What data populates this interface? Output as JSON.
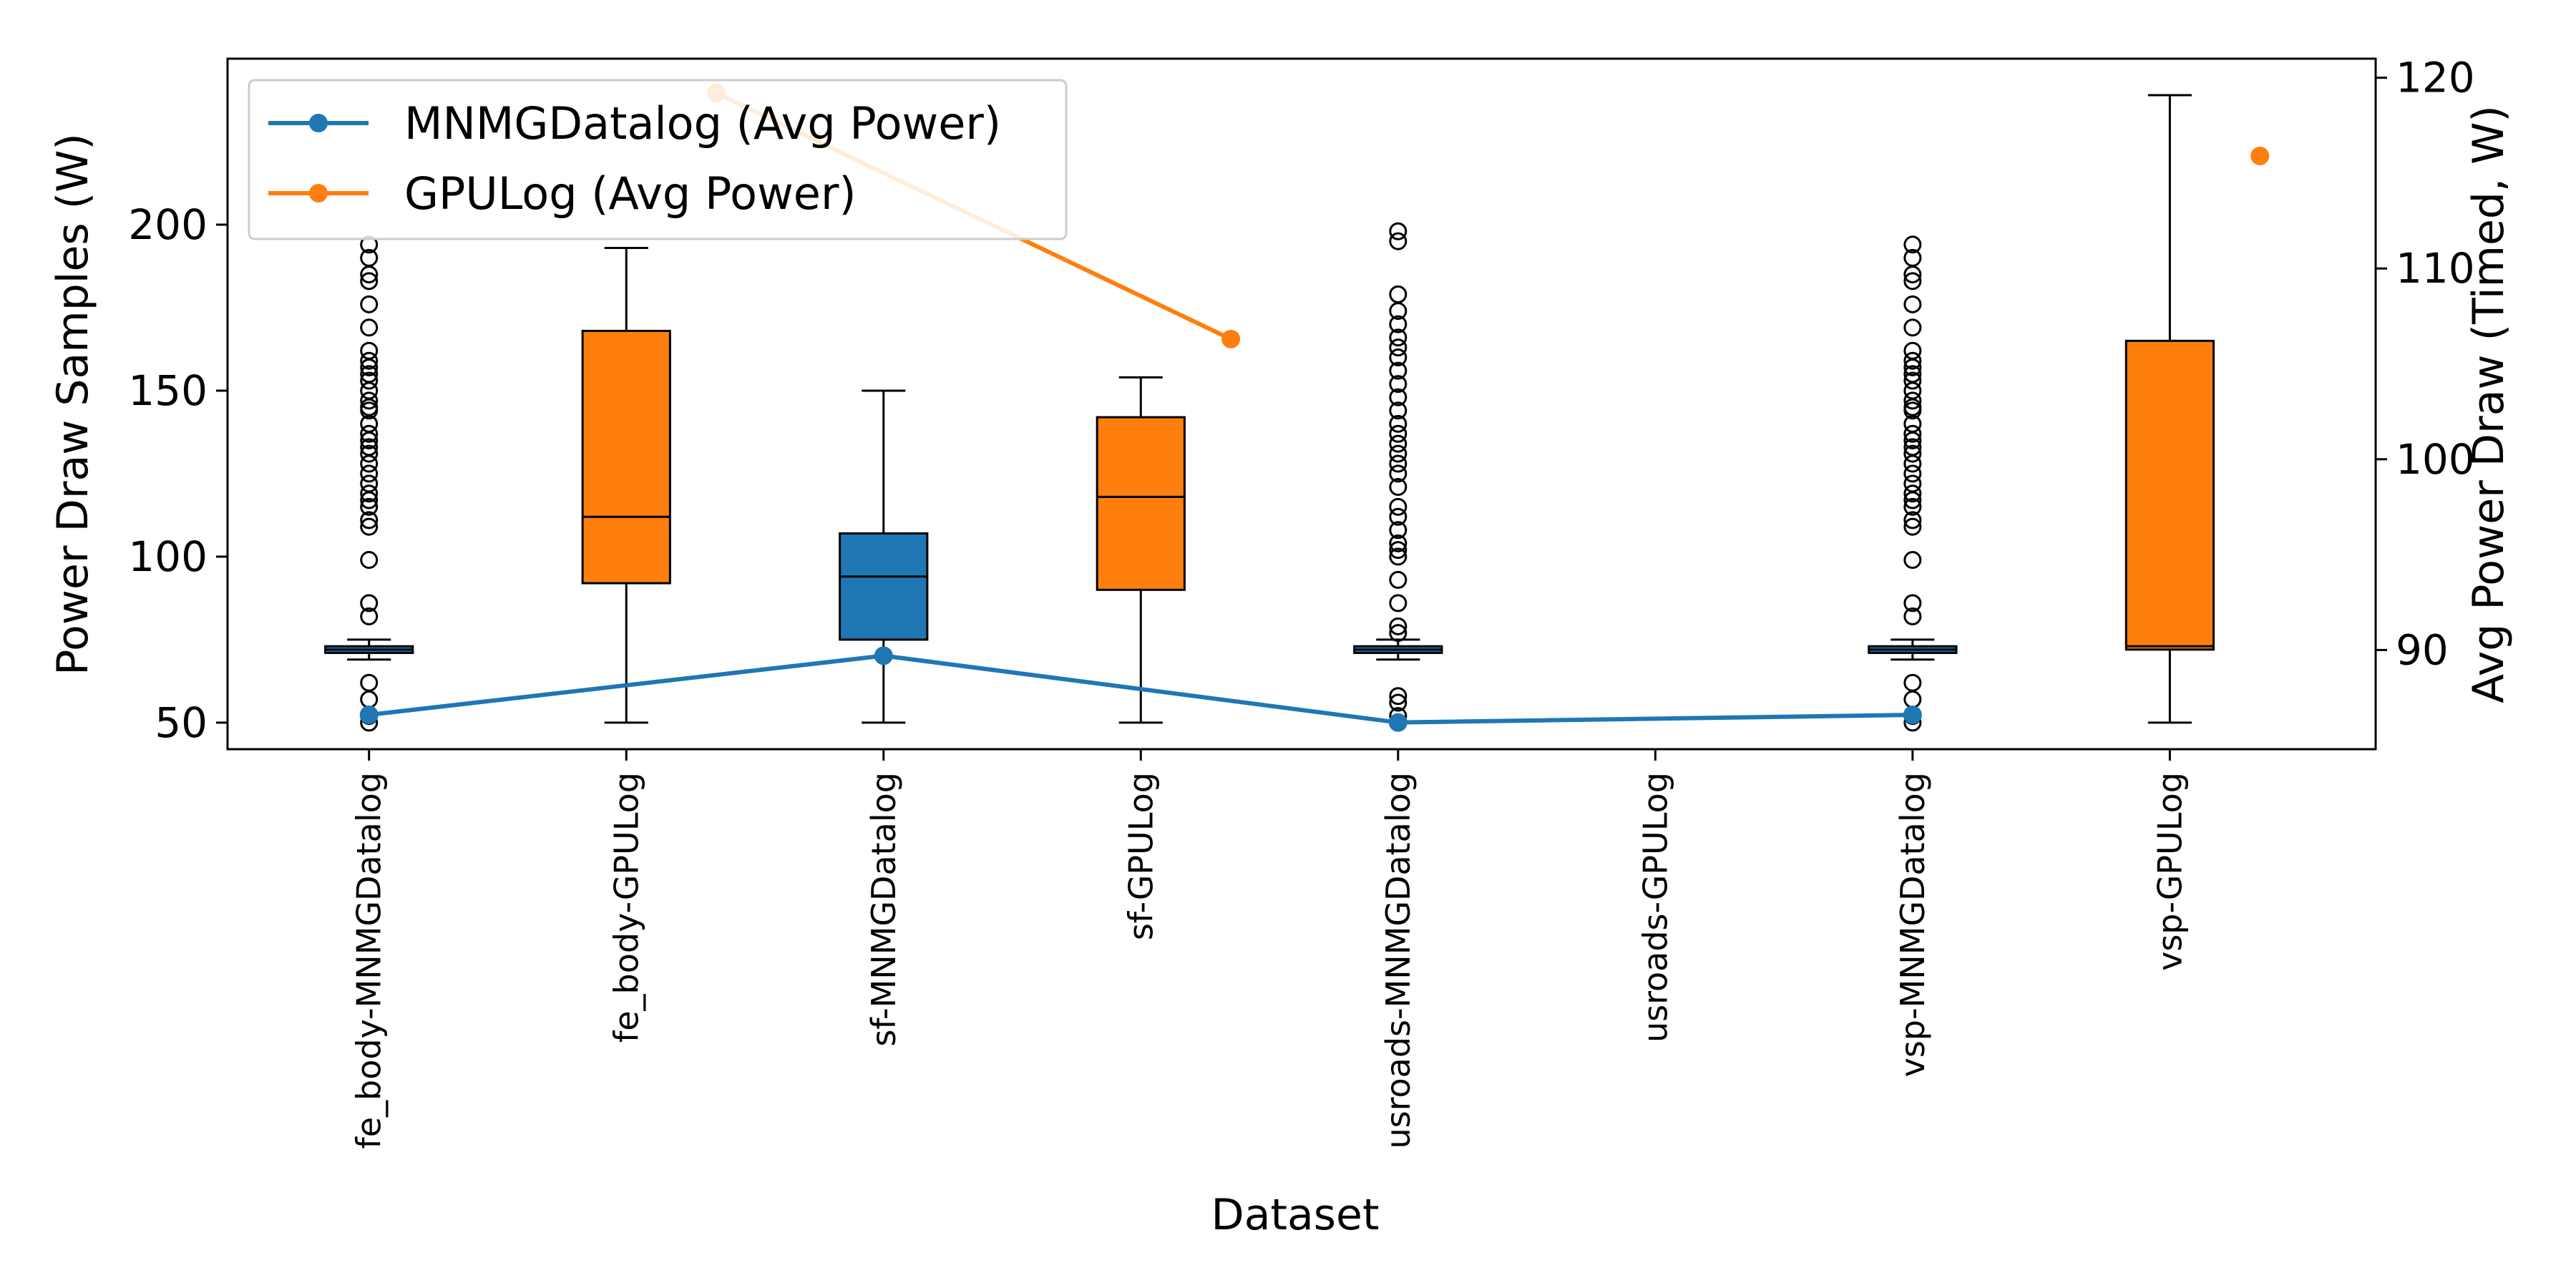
{
  "chart_data": {
    "type": "box",
    "xlabel": "Dataset",
    "ylabel": "Power Draw Samples (W)",
    "y2label": "Avg Power Draw (Timed, W)",
    "ylim": [
      42,
      250
    ],
    "y2lim": [
      84.8,
      121
    ],
    "yticks": [
      50,
      100,
      150,
      200
    ],
    "y2ticks": [
      90,
      100,
      110,
      120
    ],
    "categories": [
      "fe_body-MNMGDatalog",
      "fe_body-GPULog",
      "sf-MNMGDatalog",
      "sf-GPULog",
      "usroads-MNMGDatalog",
      "usroads-GPULog",
      "vsp-MNMGDatalog",
      "vsp-GPULog"
    ],
    "colors": {
      "mnmg": "#1f77b4",
      "gpu": "#ff7f0e"
    },
    "boxes": [
      {
        "category": "fe_body-MNMGDatalog",
        "group": "mnmg",
        "whisker_low": 69,
        "q1": 71,
        "median": 72,
        "q3": 73,
        "whisker_high": 75,
        "outliers_high": [
          82,
          86,
          99,
          109,
          111,
          115,
          117,
          119,
          122,
          125,
          128,
          131,
          133,
          135,
          137,
          140,
          144,
          145,
          147,
          150,
          153,
          155,
          157,
          159,
          162,
          169,
          176,
          183,
          185,
          190,
          194
        ],
        "outliers_low": [
          50,
          52,
          57,
          62
        ]
      },
      {
        "category": "fe_body-GPULog",
        "group": "gpu",
        "whisker_low": 50,
        "q1": 92,
        "median": 112,
        "q3": 168,
        "whisker_high": 193,
        "outliers_high": [],
        "outliers_low": []
      },
      {
        "category": "sf-MNMGDatalog",
        "group": "mnmg",
        "whisker_low": 50,
        "q1": 75,
        "median": 94,
        "q3": 107,
        "whisker_high": 150,
        "outliers_high": [],
        "outliers_low": []
      },
      {
        "category": "sf-GPULog",
        "group": "gpu",
        "whisker_low": 50,
        "q1": 90,
        "median": 118,
        "q3": 142,
        "whisker_high": 154,
        "outliers_high": [],
        "outliers_low": []
      },
      {
        "category": "usroads-MNMGDatalog",
        "group": "mnmg",
        "whisker_low": 69,
        "q1": 71,
        "median": 72,
        "q3": 73,
        "whisker_high": 75,
        "outliers_high": [
          77,
          79,
          86,
          93,
          100,
          102,
          104,
          108,
          112,
          115,
          121,
          125,
          128,
          131,
          134,
          137,
          140,
          144,
          148,
          152,
          156,
          160,
          163,
          166,
          170,
          174,
          179,
          195,
          198
        ],
        "outliers_low": [
          50,
          52,
          56,
          58
        ]
      },
      {
        "category": "usroads-GPULog",
        "group": "gpu",
        "whisker_low": null,
        "q1": null,
        "median": null,
        "q3": null,
        "whisker_high": null,
        "outliers_high": [],
        "outliers_low": []
      },
      {
        "category": "vsp-MNMGDatalog",
        "group": "mnmg",
        "whisker_low": 69,
        "q1": 71,
        "median": 72,
        "q3": 73,
        "whisker_high": 75,
        "outliers_high": [
          82,
          86,
          99,
          109,
          111,
          115,
          117,
          119,
          122,
          125,
          128,
          131,
          133,
          135,
          137,
          140,
          144,
          145,
          147,
          150,
          153,
          155,
          157,
          159,
          162,
          169,
          176,
          183,
          185,
          190,
          194
        ],
        "outliers_low": [
          50,
          52,
          57,
          62
        ]
      },
      {
        "category": "vsp-GPULog",
        "group": "gpu",
        "whisker_low": 50,
        "q1": 72,
        "median": 73,
        "q3": 165,
        "whisker_high": 239,
        "outliers_high": [],
        "outliers_low": []
      }
    ],
    "series": [
      {
        "name": "MNMGDatalog (Avg Power)",
        "color": "#1f77b4",
        "axis": "right",
        "points": [
          {
            "x": "fe_body-MNMGDatalog",
            "y": 86.6
          },
          {
            "x": "sf-MNMGDatalog",
            "y": 89.7
          },
          {
            "x": "usroads-MNMGDatalog",
            "y": 86.2
          },
          {
            "x": "vsp-MNMGDatalog",
            "y": 86.6
          }
        ]
      },
      {
        "name": "GPULog (Avg Power)",
        "color": "#ff7f0e",
        "axis": "right",
        "points": [
          {
            "x": "fe_body-GPULog",
            "y": 119.2
          },
          {
            "x": "sf-GPULog",
            "y": 106.3
          },
          {
            "x": "usroads-GPULog",
            "y": null
          },
          {
            "x": "vsp-GPULog",
            "y": 115.9
          }
        ]
      }
    ],
    "legend_position": "upper left",
    "grid": false
  }
}
